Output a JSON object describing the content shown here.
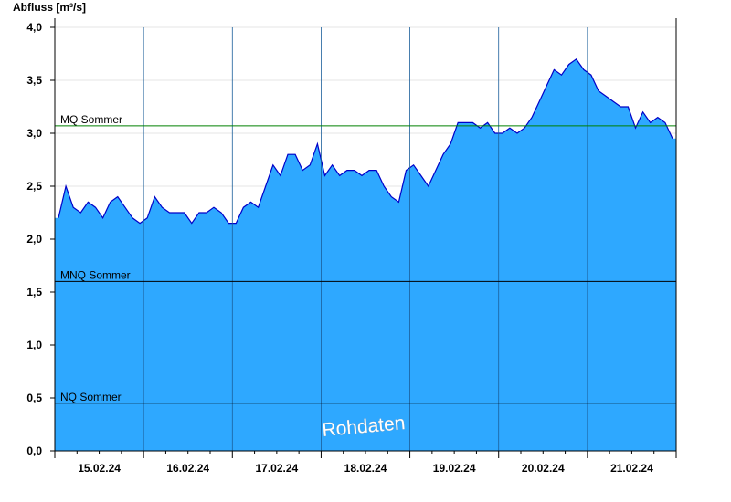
{
  "chart_data": {
    "type": "area",
    "title": "Abfluss [m³/s]",
    "annotation": "Rohdaten",
    "categories": [
      null,
      null,
      null,
      null,
      null,
      null,
      "15.02.24",
      null,
      null,
      null,
      null,
      null,
      null,
      null,
      null,
      null,
      null,
      null,
      "16.02.24",
      null,
      null,
      null,
      null,
      null,
      null,
      null,
      null,
      null,
      null,
      null,
      "17.02.24",
      null,
      null,
      null,
      null,
      null,
      null,
      null,
      null,
      null,
      null,
      null,
      "18.02.24",
      null,
      null,
      null,
      null,
      null,
      null,
      null,
      null,
      null,
      null,
      null,
      "19.02.24",
      null,
      null,
      null,
      null,
      null,
      null,
      null,
      null,
      null,
      null,
      null,
      "20.02.24",
      null,
      null,
      null,
      null,
      null,
      null,
      null,
      null,
      null,
      null,
      null,
      "21.02.24",
      null,
      null,
      null,
      null,
      null
    ],
    "values": [
      2.2,
      2.5,
      2.3,
      2.25,
      2.35,
      2.3,
      2.2,
      2.35,
      2.4,
      2.3,
      2.2,
      2.15,
      2.2,
      2.4,
      2.3,
      2.25,
      2.25,
      2.25,
      2.15,
      2.25,
      2.25,
      2.3,
      2.25,
      2.15,
      2.15,
      2.3,
      2.35,
      2.3,
      2.5,
      2.7,
      2.6,
      2.8,
      2.8,
      2.65,
      2.7,
      2.9,
      2.6,
      2.7,
      2.6,
      2.65,
      2.65,
      2.6,
      2.65,
      2.65,
      2.5,
      2.4,
      2.35,
      2.65,
      2.7,
      2.6,
      2.5,
      2.65,
      2.8,
      2.9,
      3.1,
      3.1,
      3.1,
      3.05,
      3.1,
      3.0,
      3.0,
      3.05,
      3.0,
      3.05,
      3.15,
      3.3,
      3.45,
      3.6,
      3.55,
      3.65,
      3.7,
      3.6,
      3.55,
      3.4,
      3.35,
      3.3,
      3.25,
      3.25,
      3.05,
      3.2,
      3.1,
      3.15,
      3.1,
      2.95
    ],
    "color": "#2ea8ff",
    "line_color": "#0000c8",
    "ylim": [
      0,
      4
    ],
    "yticks": [
      {
        "value": 0,
        "label": "0,0"
      },
      {
        "value": 0.5,
        "label": "0,5"
      },
      {
        "value": 1,
        "label": "1,0"
      },
      {
        "value": 1.5,
        "label": "1,5"
      },
      {
        "value": 2,
        "label": "2,0"
      },
      {
        "value": 2.5,
        "label": "2,5"
      },
      {
        "value": 3,
        "label": "3,0"
      },
      {
        "value": 3.5,
        "label": "3,5"
      },
      {
        "value": 4,
        "label": "4,0"
      }
    ],
    "grid": true,
    "reference_lines": [
      {
        "label": "MQ Sommer",
        "value": 3.07,
        "color": "#008000"
      },
      {
        "label": "MNQ Sommer",
        "value": 1.6,
        "color": "#000000"
      },
      {
        "label": "NQ Sommer",
        "value": 0.45,
        "color": "#000000"
      }
    ]
  }
}
